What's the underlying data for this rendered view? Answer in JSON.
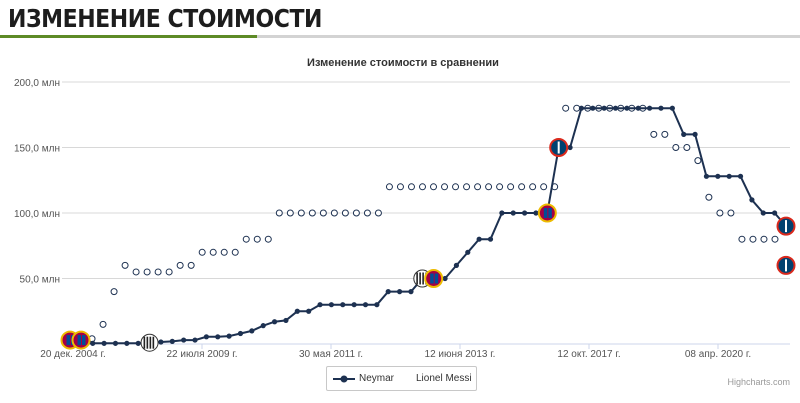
{
  "header": {
    "title": "ИЗМЕНЕНИЕ СТОИМОСТИ"
  },
  "colors": {
    "neymar": "#1d3151",
    "messi": "#1d3151",
    "accent": "#5d8a26",
    "grid": "#d8d8d8"
  },
  "credits": "Highcharts.com",
  "chart_data": {
    "type": "line",
    "title": "Изменение стоимости в сравнении",
    "xlabel": "",
    "ylabel": "",
    "ylim": [
      0,
      200
    ],
    "y_ticks": [
      {
        "value": 50,
        "label": "50,0 млн"
      },
      {
        "value": 100,
        "label": "100,0 млн"
      },
      {
        "value": 150,
        "label": "150,0 млн"
      },
      {
        "value": 200,
        "label": "200,0 млн"
      }
    ],
    "x_ticks": [
      "20 дек. 2004 г.",
      "22 июля 2009 г.",
      "30 мая 2011 г.",
      "12 июня 2013 г.",
      "12 окт. 2017 г.",
      "08 апр. 2020 г."
    ],
    "grid": true,
    "legend_position": "bottom-center",
    "series": [
      {
        "name": "Neymar",
        "style": "solid-line-filled-markers",
        "values": [
          0.5,
          0.5,
          0.5,
          0.5,
          0.5,
          0.5,
          0.5,
          1,
          1.5,
          2,
          3,
          3,
          5.5,
          5.5,
          6,
          8,
          10,
          14,
          17,
          18,
          25,
          25,
          30,
          30,
          30,
          30,
          30,
          30,
          40,
          40,
          40,
          50,
          50,
          50,
          60,
          70,
          80,
          80,
          100,
          100,
          100,
          100,
          100,
          150,
          150,
          180,
          180,
          180,
          180,
          180,
          180,
          180,
          180,
          180,
          160,
          160,
          128,
          128,
          128,
          128,
          110,
          100,
          100,
          90
        ]
      },
      {
        "name": "Lionel Messi",
        "style": "hollow-markers",
        "values": [
          3,
          3,
          4,
          15,
          40,
          60,
          55,
          55,
          55,
          55,
          60,
          60,
          70,
          70,
          70,
          70,
          80,
          80,
          80,
          100,
          100,
          100,
          100,
          100,
          100,
          100,
          100,
          100,
          100,
          120,
          120,
          120,
          120,
          120,
          120,
          120,
          120,
          120,
          120,
          120,
          120,
          120,
          120,
          120,
          120,
          180,
          180,
          180,
          180,
          180,
          180,
          180,
          180,
          160,
          160,
          150,
          150,
          140,
          112,
          100,
          100,
          80,
          80,
          80,
          80,
          60
        ]
      }
    ]
  }
}
